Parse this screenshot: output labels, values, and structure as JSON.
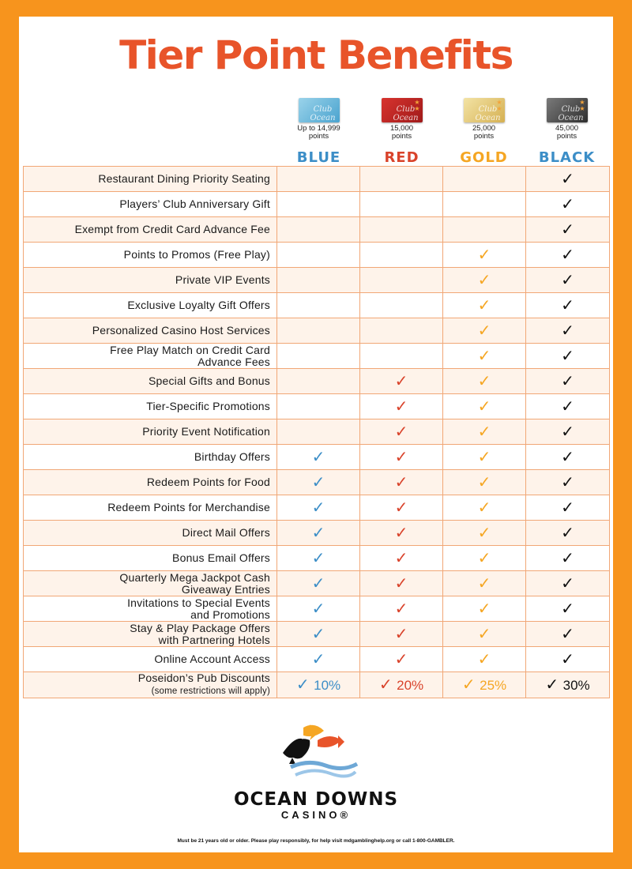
{
  "title": "Tier Point Benefits",
  "colors": {
    "blue": "#3C8EC7",
    "red": "#D9432B",
    "gold": "#F5A623",
    "black": "#111111",
    "title": "#E8542A",
    "border": "#F7941D"
  },
  "tiers": [
    {
      "name": "BLUE",
      "points_line1": "Up to 14,999",
      "points_line2": "points",
      "color": "#3C8EC7"
    },
    {
      "name": "RED",
      "points_line1": "15,000",
      "points_line2": "points",
      "color": "#D9432B"
    },
    {
      "name": "GOLD",
      "points_line1": "25,000",
      "points_line2": "points",
      "color": "#F5A623"
    },
    {
      "name": "BLACK",
      "points_line1": "45,000",
      "points_line2": "points",
      "color": "#111111"
    }
  ],
  "check_icon": "✓",
  "benefits": [
    {
      "label": "Restaurant Dining Priority Seating",
      "tiers": [
        false,
        false,
        false,
        true
      ]
    },
    {
      "label": "Players’ Club Anniversary Gift",
      "tiers": [
        false,
        false,
        false,
        true
      ]
    },
    {
      "label": "Exempt from Credit Card Advance Fee",
      "tiers": [
        false,
        false,
        false,
        true
      ]
    },
    {
      "label": "Points to Promos (Free Play)",
      "tiers": [
        false,
        false,
        true,
        true
      ]
    },
    {
      "label": "Private VIP Events",
      "tiers": [
        false,
        false,
        true,
        true
      ]
    },
    {
      "label": "Exclusive Loyalty Gift Offers",
      "tiers": [
        false,
        false,
        true,
        true
      ]
    },
    {
      "label": "Personalized Casino Host Services",
      "tiers": [
        false,
        false,
        true,
        true
      ]
    },
    {
      "label": "Free Play Match on Credit Card",
      "label2": "Advance Fees",
      "tiers": [
        false,
        false,
        true,
        true
      ]
    },
    {
      "label": "Special Gifts and Bonus",
      "tiers": [
        false,
        true,
        true,
        true
      ]
    },
    {
      "label": "Tier-Specific Promotions",
      "tiers": [
        false,
        true,
        true,
        true
      ]
    },
    {
      "label": "Priority Event Notification",
      "tiers": [
        false,
        true,
        true,
        true
      ]
    },
    {
      "label": "Birthday Offers",
      "tiers": [
        true,
        true,
        true,
        true
      ]
    },
    {
      "label": "Redeem Points for Food",
      "tiers": [
        true,
        true,
        true,
        true
      ]
    },
    {
      "label": "Redeem Points for Merchandise",
      "tiers": [
        true,
        true,
        true,
        true
      ]
    },
    {
      "label": "Direct Mail Offers",
      "tiers": [
        true,
        true,
        true,
        true
      ]
    },
    {
      "label": "Bonus Email Offers",
      "tiers": [
        true,
        true,
        true,
        true
      ]
    },
    {
      "label": "Quarterly Mega Jackpot Cash",
      "label2": "Giveaway Entries",
      "tiers": [
        true,
        true,
        true,
        true
      ]
    },
    {
      "label": "Invitations to Special Events",
      "label2": "and Promotions",
      "tiers": [
        true,
        true,
        true,
        true
      ]
    },
    {
      "label": "Stay & Play Package Offers",
      "label2": "with Partnering Hotels",
      "tiers": [
        true,
        true,
        true,
        true
      ]
    },
    {
      "label": "Online Account Access",
      "tiers": [
        true,
        true,
        true,
        true
      ]
    }
  ],
  "pub_row": {
    "label": "Poseidon’s Pub Discounts",
    "note": "(some restrictions will apply)",
    "discounts": [
      "10%",
      "20%",
      "25%",
      "30%"
    ]
  },
  "logo": {
    "name": "OCEAN DOWNS",
    "sub": "CASINO®"
  },
  "disclaimer": "Must be 21 years old or older. Please play responsibly, for help visit mdgamblinghelp.org or call 1-800-GAMBLER."
}
